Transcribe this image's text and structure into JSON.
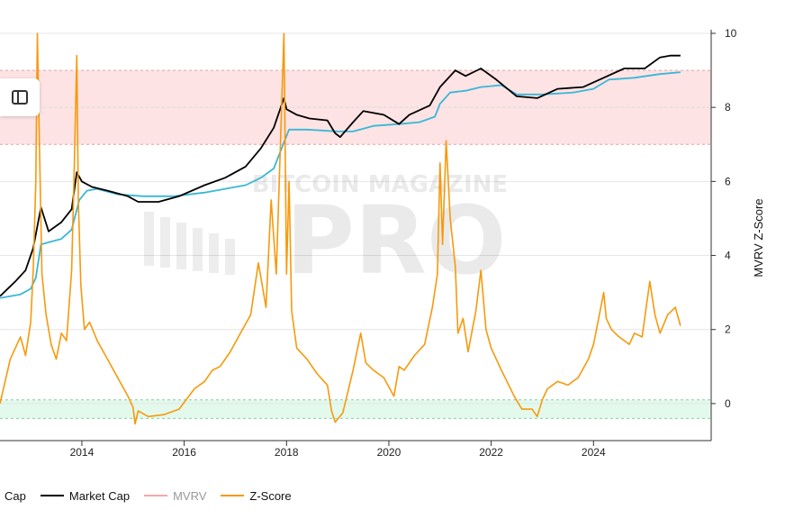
{
  "chart_data": {
    "type": "line",
    "title": "",
    "xlabel": "",
    "ylabel": "MVRV Z-Score",
    "x_ticks": [
      "2014",
      "2016",
      "2018",
      "2020",
      "2022",
      "2024"
    ],
    "y_ticks": [
      "10",
      "8",
      "6",
      "4",
      "2",
      "0"
    ],
    "ylim": [
      -1,
      10
    ],
    "xlim": [
      2012.4,
      2026.3
    ],
    "grid": true,
    "legend_position": "bottom-left",
    "zones": [
      {
        "name": "overvalued",
        "from": 7,
        "to": 9,
        "color": "#fde3e4"
      },
      {
        "name": "undervalued",
        "from": -0.4,
        "to": 0.1,
        "color": "#e3f9ec"
      }
    ],
    "series": [
      {
        "name": "Cap",
        "color": "#39b7d6",
        "x": [
          2012.4,
          2012.8,
          2013.0,
          2013.1,
          2013.2,
          2013.6,
          2013.8,
          2013.95,
          2014.1,
          2014.3,
          2014.7,
          2015.2,
          2015.8,
          2016.4,
          2016.8,
          2017.2,
          2017.5,
          2017.75,
          2017.95,
          2018.05,
          2018.4,
          2019.0,
          2019.3,
          2019.7,
          2020.2,
          2020.6,
          2020.9,
          2021.0,
          2021.2,
          2021.5,
          2021.8,
          2022.2,
          2022.5,
          2023.0,
          2023.6,
          2024.0,
          2024.3,
          2024.8,
          2025.3,
          2025.7
        ],
        "y": [
          2.85,
          2.95,
          3.1,
          3.4,
          4.3,
          4.45,
          4.7,
          5.5,
          5.75,
          5.8,
          5.65,
          5.6,
          5.6,
          5.7,
          5.8,
          5.9,
          6.1,
          6.35,
          7.05,
          7.4,
          7.4,
          7.35,
          7.35,
          7.5,
          7.55,
          7.6,
          7.75,
          8.1,
          8.4,
          8.45,
          8.55,
          8.6,
          8.35,
          8.35,
          8.4,
          8.5,
          8.75,
          8.8,
          8.9,
          8.95
        ]
      },
      {
        "name": "Market Cap",
        "color": "#000000",
        "x": [
          2012.4,
          2012.7,
          2012.9,
          2013.05,
          2013.2,
          2013.35,
          2013.6,
          2013.8,
          2013.9,
          2014.0,
          2014.2,
          2014.5,
          2014.9,
          2015.1,
          2015.5,
          2015.9,
          2016.4,
          2016.8,
          2017.2,
          2017.5,
          2017.75,
          2017.95,
          2018.0,
          2018.2,
          2018.45,
          2018.8,
          2018.95,
          2019.05,
          2019.3,
          2019.5,
          2019.9,
          2020.2,
          2020.4,
          2020.8,
          2021.0,
          2021.3,
          2021.5,
          2021.8,
          2022.1,
          2022.5,
          2022.9,
          2023.3,
          2023.8,
          2024.2,
          2024.6,
          2025.0,
          2025.3,
          2025.5,
          2025.7
        ],
        "y": [
          2.9,
          3.3,
          3.6,
          4.2,
          5.3,
          4.65,
          4.9,
          5.25,
          6.25,
          6.0,
          5.85,
          5.75,
          5.6,
          5.45,
          5.45,
          5.6,
          5.9,
          6.1,
          6.4,
          6.9,
          7.45,
          8.25,
          7.95,
          7.8,
          7.7,
          7.65,
          7.3,
          7.2,
          7.6,
          7.9,
          7.8,
          7.55,
          7.8,
          8.05,
          8.55,
          9.0,
          8.85,
          9.05,
          8.75,
          8.3,
          8.25,
          8.5,
          8.55,
          8.8,
          9.05,
          9.05,
          9.35,
          9.4,
          9.4
        ]
      },
      {
        "name": "MVRV",
        "color": "#f4a6ac",
        "x": [],
        "y": []
      },
      {
        "name": "Z-Score",
        "color": "#f7990c",
        "x": [
          2012.4,
          2012.5,
          2012.6,
          2012.8,
          2012.9,
          2013.0,
          2013.05,
          2013.1,
          2013.13,
          2013.17,
          2013.22,
          2013.3,
          2013.4,
          2013.5,
          2013.6,
          2013.7,
          2013.8,
          2013.85,
          2013.9,
          2013.93,
          2013.98,
          2014.05,
          2014.15,
          2014.3,
          2014.5,
          2014.7,
          2014.9,
          2015.0,
          2015.04,
          2015.1,
          2015.3,
          2015.6,
          2015.9,
          2016.2,
          2016.4,
          2016.55,
          2016.7,
          2016.9,
          2017.1,
          2017.3,
          2017.45,
          2017.6,
          2017.7,
          2017.8,
          2017.88,
          2017.95,
          2018.0,
          2018.05,
          2018.1,
          2018.2,
          2018.4,
          2018.6,
          2018.8,
          2018.88,
          2018.95,
          2019.1,
          2019.3,
          2019.45,
          2019.55,
          2019.7,
          2019.9,
          2020.1,
          2020.2,
          2020.3,
          2020.5,
          2020.7,
          2020.85,
          2020.95,
          2021.0,
          2021.05,
          2021.12,
          2021.2,
          2021.3,
          2021.35,
          2021.45,
          2021.55,
          2021.7,
          2021.8,
          2021.9,
          2022.0,
          2022.2,
          2022.45,
          2022.6,
          2022.8,
          2022.9,
          2023.0,
          2023.1,
          2023.3,
          2023.5,
          2023.7,
          2023.9,
          2024.0,
          2024.1,
          2024.2,
          2024.25,
          2024.35,
          2024.5,
          2024.7,
          2024.8,
          2024.95,
          2025.1,
          2025.2,
          2025.3,
          2025.45,
          2025.6,
          2025.7
        ],
        "y": [
          0.0,
          0.6,
          1.2,
          1.8,
          1.3,
          2.2,
          3.6,
          6.0,
          10.0,
          7.0,
          3.5,
          2.4,
          1.6,
          1.2,
          1.9,
          1.7,
          3.6,
          6.3,
          9.4,
          5.5,
          3.2,
          2.0,
          2.2,
          1.7,
          1.2,
          0.7,
          0.2,
          -0.1,
          -0.55,
          -0.2,
          -0.35,
          -0.3,
          -0.15,
          0.4,
          0.6,
          0.9,
          1.0,
          1.4,
          1.9,
          2.4,
          3.8,
          2.6,
          5.5,
          3.5,
          7.0,
          10.0,
          3.5,
          6.0,
          2.5,
          1.5,
          1.2,
          0.8,
          0.5,
          -0.2,
          -0.5,
          -0.25,
          0.9,
          1.9,
          1.1,
          0.9,
          0.7,
          0.2,
          1.0,
          0.9,
          1.3,
          1.6,
          2.6,
          3.5,
          6.5,
          4.3,
          7.1,
          5.0,
          3.7,
          1.9,
          2.3,
          1.4,
          2.5,
          3.6,
          2.0,
          1.5,
          0.9,
          0.2,
          -0.15,
          -0.15,
          -0.35,
          0.1,
          0.4,
          0.6,
          0.5,
          0.7,
          1.2,
          1.6,
          2.3,
          3.0,
          2.3,
          2.0,
          1.8,
          1.6,
          1.9,
          1.8,
          3.3,
          2.4,
          1.9,
          2.4,
          2.6,
          2.1
        ]
      }
    ]
  },
  "watermark": {
    "top": "BITCOIN MAGAZINE",
    "big": "PRO"
  },
  "icons": {
    "sidebar_toggle": "sidebar-toggle-icon"
  }
}
